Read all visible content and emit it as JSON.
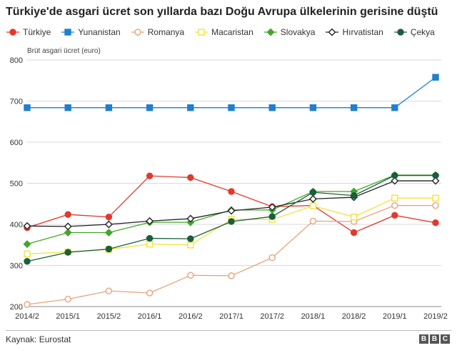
{
  "title": "Türkiye'de asgari ücret son yıllarda bazı Doğu Avrupa ülkelerinin gerisine düştü",
  "source": "Kaynak: Eurostat",
  "logo_text": "BBC",
  "chart_data": {
    "type": "line",
    "title": "Türkiye'de asgari ücret son yıllarda bazı Doğu Avrupa ülkelerinin gerisine düştü",
    "ylabel": "Brüt asgari ücret (euro)",
    "xlabel": "",
    "ylim": [
      200,
      800
    ],
    "yticks": [
      200,
      300,
      400,
      500,
      600,
      700,
      800
    ],
    "grid": true,
    "legend_position": "top",
    "categories": [
      "2014/2",
      "2015/1",
      "2015/2",
      "2016/1",
      "2016/2",
      "2017/1",
      "2017/2",
      "2018/1",
      "2018/2",
      "2019/1",
      "2019/2"
    ],
    "series": [
      {
        "name": "Türkiye",
        "color": "#e2392d",
        "marker": "circle-filled",
        "values": [
          392,
          424,
          418,
          518,
          514,
          480,
          443,
          446,
          380,
          422,
          404
        ]
      },
      {
        "name": "Yunanistan",
        "color": "#1f7fd1",
        "marker": "square-filled",
        "values": [
          684,
          684,
          684,
          684,
          684,
          684,
          684,
          684,
          684,
          684,
          758
        ]
      },
      {
        "name": "Romanya",
        "color": "#e8a37a",
        "marker": "circle-open",
        "values": [
          205,
          218,
          238,
          233,
          276,
          275,
          319,
          408,
          407,
          446,
          446
        ]
      },
      {
        "name": "Macaristan",
        "color": "#f3e23a",
        "marker": "square-open",
        "values": [
          328,
          333,
          339,
          352,
          350,
          412,
          412,
          445,
          418,
          464,
          464
        ]
      },
      {
        "name": "Slovakya",
        "color": "#42a62a",
        "marker": "diamond-filled",
        "values": [
          352,
          380,
          380,
          405,
          405,
          435,
          435,
          480,
          480,
          520,
          520
        ]
      },
      {
        "name": "Hırvatistan",
        "color": "#222222",
        "marker": "diamond-open",
        "values": [
          396,
          395,
          400,
          408,
          414,
          433,
          442,
          462,
          466,
          506,
          506
        ]
      },
      {
        "name": "Çekya",
        "color": "#1a5e3b",
        "marker": "circle-filled",
        "values": [
          310,
          332,
          340,
          366,
          365,
          407,
          419,
          478,
          470,
          519,
          519
        ]
      }
    ]
  }
}
